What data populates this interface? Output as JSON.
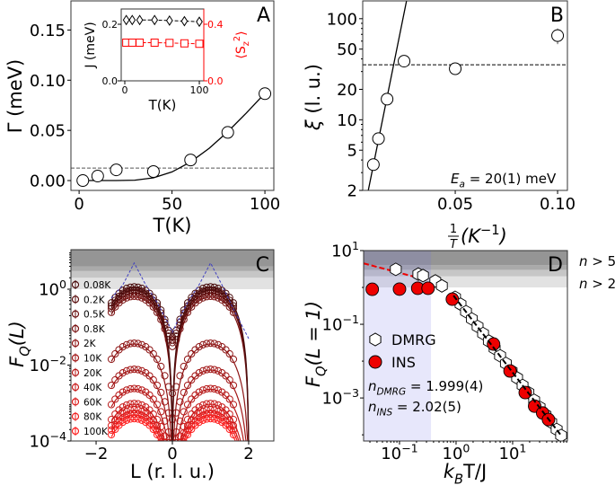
{
  "chart_data": [
    {
      "panel": "A",
      "type": "scatter",
      "xlabel": [
        {
          "t": "T(K)"
        }
      ],
      "ylabel": [
        {
          "t": "Γ (meV)"
        }
      ],
      "xlim": [
        -4.4,
        104.8
      ],
      "ylim": [
        -0.0098,
        0.179
      ],
      "xticks": [
        0,
        50,
        100
      ],
      "xtick_labels": [
        "0",
        "50",
        "100"
      ],
      "yticks": [
        0,
        0.05,
        0.1,
        0.15
      ],
      "ytick_labels": [
        "0.00",
        "0.05",
        "0.10",
        "0.15"
      ],
      "series": [
        {
          "marker": "open-circle",
          "x": [
            2,
            10,
            20,
            40,
            60,
            80,
            100
          ],
          "y": [
            0.0,
            0.0045,
            0.0107,
            0.009,
            0.0205,
            0.048,
            0.0866
          ]
        }
      ],
      "fit": {
        "style": "solid",
        "x": [
          3,
          10,
          20,
          30,
          40,
          50,
          60,
          70,
          80,
          90,
          100
        ],
        "y": [
          0,
          0,
          1e-05,
          0.0004,
          0.0027,
          0.0086,
          0.0186,
          0.0322,
          0.0487,
          0.0673,
          0.087
        ]
      },
      "hline": {
        "y": 0.0125,
        "style": "dashed"
      },
      "inset": {
        "xlabel": [
          {
            "t": "T(K)"
          }
        ],
        "ylabel": [
          {
            "t": "J (meV)"
          }
        ],
        "ylabel_right": [
          {
            "t": "⟨S"
          },
          {
            "t": "z",
            "s": "sub"
          },
          {
            "t": "2",
            "s": "sup"
          },
          {
            "t": "⟩"
          }
        ],
        "right_color": "#ff0000",
        "xlim": [
          -4.8,
          106
        ],
        "ylim": [
          0,
          0.254
        ],
        "ylim_right": [
          0,
          0.508
        ],
        "xticks": [
          0,
          100
        ],
        "xtick_labels": [
          "0",
          "100"
        ],
        "yticks": [
          0,
          0.2
        ],
        "ytick_labels": [
          "0.0",
          "0.2"
        ],
        "yticks_right": [
          0,
          0.4
        ],
        "ytick_labels_right": [
          "0.0",
          "0.4"
        ],
        "x": [
          2,
          10,
          20,
          40,
          60,
          80,
          100
        ],
        "J": [
          0.215,
          0.215,
          0.215,
          0.215,
          0.213,
          0.211,
          0.209
        ],
        "Sz2": [
          0.27,
          0.27,
          0.27,
          0.27,
          0.268,
          0.265,
          0.262
        ]
      }
    },
    {
      "panel": "B",
      "type": "scatter",
      "yscale": "log",
      "ylabel": [
        {
          "t": "ξ",
          "it": true
        },
        {
          "t": " (l. u.)"
        }
      ],
      "xlabel": {
        "numerator": "1",
        "denominator": "T",
        "rest": [
          {
            "t": "(K",
            "it": true
          },
          {
            "t": "−1",
            "s": "sup"
          },
          {
            "t": ")",
            "it": true
          }
        ]
      },
      "xlim": [
        0.0048,
        0.1048
      ],
      "ylim": [
        2,
        150
      ],
      "xticks": [
        0.05,
        0.1
      ],
      "xtick_labels": [
        "0.05",
        "0.10"
      ],
      "yticks": [
        2,
        5,
        10,
        20,
        50,
        100
      ],
      "ytick_labels": [
        "2",
        "5",
        "10",
        "20",
        "50",
        "100"
      ],
      "series": [
        {
          "marker": "open-circle",
          "x": [
            0.01,
            0.0125,
            0.0167,
            0.025,
            0.05,
            0.1
          ],
          "y": [
            3.6,
            6.5,
            16,
            38,
            32,
            68
          ],
          "yerr": [
            0,
            0,
            0,
            0,
            0,
            12
          ]
        }
      ],
      "fit": {
        "style": "solid",
        "x": [
          0.0075,
          0.0262
        ],
        "y": [
          2,
          150
        ]
      },
      "hline": {
        "y": 35,
        "style": "dashed"
      },
      "annotation": [
        {
          "t": "E",
          "it": true
        },
        {
          "t": "a",
          "s": "sub",
          "it": true
        },
        {
          "t": " = 20(1) meV"
        }
      ]
    },
    {
      "panel": "C",
      "type": "scatter",
      "yscale": "log",
      "ylabel": [
        {
          "t": "F",
          "it": true
        },
        {
          "t": "Q",
          "s": "sub",
          "it": true
        },
        {
          "t": "(L)",
          "it": true
        }
      ],
      "xlabel": [
        {
          "t": "L (r. l. u.)"
        }
      ],
      "xlim": [
        -2.66,
        2.66
      ],
      "ylim": [
        0.0001,
        11
      ],
      "xticks": [
        -2,
        0,
        2
      ],
      "xtick_labels": [
        "−2",
        "0",
        "2"
      ],
      "yticks": [
        1,
        0.01,
        0.0001
      ],
      "ytick_labels": [
        [
          {
            "t": "10"
          },
          {
            "t": "0",
            "s": "sup"
          }
        ],
        [
          {
            "t": "10"
          },
          {
            "t": "−2",
            "s": "sup"
          }
        ],
        [
          {
            "t": "10"
          },
          {
            "t": "−4",
            "s": "sup"
          }
        ]
      ],
      "bands": [
        1,
        2,
        3,
        4
      ],
      "series": [
        {
          "name": "0.08K",
          "peak": 1.1,
          "color": "#4a0d0d"
        },
        {
          "name": "0.2K",
          "peak": 0.92,
          "color": "#5a0f0f"
        },
        {
          "name": "0.5K",
          "peak": 0.78,
          "color": "#6a1111"
        },
        {
          "name": "0.8K",
          "peak": 0.62,
          "color": "#7a1313"
        },
        {
          "name": "2K",
          "peak": 0.036,
          "color": "#8e1515"
        },
        {
          "name": "10K",
          "peak": 0.0074,
          "color": "#a21717"
        },
        {
          "name": "20K",
          "peak": 0.0023,
          "color": "#b61919"
        },
        {
          "name": "40K",
          "peak": 0.00093,
          "color": "#c91b1b"
        },
        {
          "name": "60K",
          "peak": 0.00064,
          "color": "#dc1c1c"
        },
        {
          "name": "80K",
          "peak": 0.00049,
          "color": "#ee1e1e"
        },
        {
          "name": "100K",
          "peak": 0.00037,
          "color": "#ff2020"
        }
      ],
      "data_L_range": [
        -1.6,
        1.6
      ],
      "fit_L_range": [
        -1.6,
        2.0
      ],
      "reference_curve": {
        "style": "dashed",
        "color": "#4040c0",
        "x": [
          -1.6,
          -1.3,
          -1.0,
          -0.7,
          -0.4,
          -0.1,
          0,
          0.1,
          0.4,
          0.7,
          1.0,
          1.3,
          1.6,
          2.0
        ],
        "y": [
          0.58,
          1.3,
          4.9,
          1.3,
          0.45,
          0.12,
          0.073,
          0.12,
          0.45,
          1.3,
          4.9,
          1.3,
          0.3,
          0.05
        ]
      }
    },
    {
      "panel": "D",
      "type": "scatter",
      "xscale": "log",
      "yscale": "log",
      "ylabel": [
        {
          "t": "F",
          "it": true
        },
        {
          "t": "Q",
          "s": "sub",
          "it": true
        },
        {
          "t": "(L = 1)",
          "it": true
        }
      ],
      "xlabel": [
        {
          "t": "k",
          "it": true
        },
        {
          "t": "B",
          "s": "sub",
          "it": true
        },
        {
          "t": "T/J"
        }
      ],
      "xlim": [
        0.0232,
        93
      ],
      "ylim": [
        6.8e-05,
        10
      ],
      "xticks": [
        0.1,
        1,
        10
      ],
      "xtick_labels": [
        [
          {
            "t": "10"
          },
          {
            "t": "−1",
            "s": "sup"
          }
        ],
        [
          {
            "t": "10"
          },
          {
            "t": "0",
            "s": "sup"
          }
        ],
        [
          {
            "t": "10"
          },
          {
            "t": "1",
            "s": "sup"
          }
        ]
      ],
      "yticks": [
        10,
        0.1,
        0.001
      ],
      "ytick_labels": [
        [
          {
            "t": "10"
          },
          {
            "t": "1",
            "s": "sup"
          }
        ],
        [
          {
            "t": "10"
          },
          {
            "t": "−1",
            "s": "sup"
          }
        ],
        [
          {
            "t": "10"
          },
          {
            "t": "−3",
            "s": "sup"
          }
        ]
      ],
      "bands": [
        1,
        2,
        3,
        4
      ],
      "band_labels": [
        [
          {
            "t": "n",
            "it": true
          },
          {
            "t": " > 5"
          }
        ],
        [
          {
            "t": "n",
            "it": true
          },
          {
            "t": " > 2"
          }
        ]
      ],
      "shaded_x_max": 0.36,
      "series": [
        {
          "name": "DMRG",
          "marker": "open-hexagon",
          "x": [
            0.086,
            0.215,
            0.26,
            0.43,
            0.56,
            0.96,
            1.2,
            1.5,
            1.9,
            2.4,
            3.0,
            3.8,
            4.8,
            6.0,
            7.6,
            9.6,
            12,
            15,
            19,
            24,
            30,
            38,
            48,
            60,
            72
          ],
          "y": [
            3.1,
            2.3,
            2.1,
            1.5,
            1.1,
            0.54,
            0.35,
            0.22,
            0.14,
            0.087,
            0.056,
            0.035,
            0.022,
            0.014,
            0.0087,
            0.0054,
            0.0035,
            0.0022,
            0.0014,
            0.00087,
            0.00056,
            0.00035,
            0.00022,
            0.00014,
            9.6e-05
          ]
        },
        {
          "name": "INS",
          "marker": "filled-circle",
          "color": "#ee0000",
          "x": [
            0.033,
            0.1,
            0.21,
            0.32,
            0.86,
            4.6,
            9.0,
            16.7,
            24.5,
            34,
            43
          ],
          "y": [
            0.89,
            0.9,
            0.95,
            0.95,
            0.48,
            0.029,
            0.0054,
            0.0014,
            0.0006,
            0.00039,
            0.00026
          ]
        }
      ],
      "fit_low": {
        "style": "dashed",
        "color": "#ee0000",
        "x": [
          0.0232,
          0.3
        ],
        "y": [
          4.5,
          1.6
        ]
      },
      "fit_high": {
        "style": "dashed",
        "color": "#000000",
        "x": [
          0.9,
          72
        ],
        "y": [
          0.6,
          9.6e-05
        ]
      },
      "annotations": [
        [
          {
            "t": "n",
            "it": true
          },
          {
            "t": "DMRG",
            "s": "sub",
            "it": true
          },
          {
            "t": " = 1.999(4)"
          }
        ],
        [
          {
            "t": "n",
            "it": true
          },
          {
            "t": "INS",
            "s": "sub",
            "it": true
          },
          {
            "t": " = 2.02(5)"
          }
        ]
      ]
    }
  ]
}
